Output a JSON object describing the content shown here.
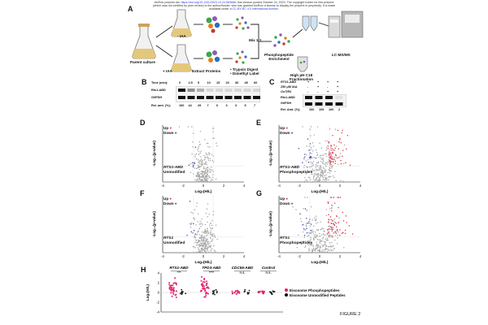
{
  "header": {
    "line1_a": "bioRxiv preprint doi: ",
    "doi": "https://doi.org/10.1101/2023.10.24.563668",
    "line1_b": "; this version posted October 24, 2023. The copyright holder for this preprint",
    "line2": "(which was not certified by peer review) is the author/funder, who has granted bioRxiv a license to display the preprint in perpetuity. It is made",
    "line3_a": "available under a ",
    "license": "CC-BY-NC 4.0 International license",
    "line3_b": "."
  },
  "panelA": {
    "label": "A",
    "parent_culture": "Parent culture",
    "minus_iaa": "- IAA",
    "plus_iaa": "+ IAA",
    "extract": "Extract Proteins",
    "digest1": "• Trypsin Digest",
    "digest2": "• Dimethyl Label",
    "mix": "Mix 1:1",
    "enrich1": "Phosphopeptide",
    "enrich2": "Enrichment",
    "frac1": "High pH C18",
    "frac2": "Fractionation",
    "lcms": "LC-MS/MS"
  },
  "panelB": {
    "label": "B",
    "time_label": "Time (min):",
    "times": [
      "0",
      "2.5",
      "5",
      "10",
      "15",
      "20",
      "30",
      "45",
      "60"
    ],
    "row1": "Rts1-ABD",
    "row2": "G6PDH",
    "rel_label": "Rel. amt. (%):",
    "rel_values": [
      "100",
      "44",
      "29",
      "7",
      "6",
      "3",
      "3",
      "5",
      "7"
    ]
  },
  "panelC": {
    "label": "C",
    "row_a": "RTS1-ABD",
    "row_b": "250 μM IAA",
    "row_c": "OsTIR1",
    "cols_a": [
      "+",
      "+",
      "+",
      "+"
    ],
    "cols_b": [
      "-",
      "+",
      "-",
      "+"
    ],
    "cols_c": [
      "-",
      "-",
      "+",
      "+"
    ],
    "band1": "Rts1-ABD",
    "band2": "G6PDH",
    "rel_label": "Rel. Amt. (%):",
    "rel_values": [
      "100",
      "105",
      "100",
      "2"
    ]
  },
  "volcano": {
    "up": "Up",
    "down": "Down",
    "xlabel": "Log₂(H/L)",
    "ylabel": "-Log₁₀(p-value)",
    "xticks": [
      "-4",
      "-2",
      "0",
      "2",
      "4"
    ],
    "D": {
      "label": "D",
      "t1": "RTS1-ABD",
      "t2": "Unmodified"
    },
    "E": {
      "label": "E",
      "t1": "RTS1-ABD",
      "t2": "Phosphopeptides"
    },
    "F": {
      "label": "F",
      "t1": "RTS1",
      "t2": "Unmodified"
    },
    "G": {
      "label": "G",
      "t1": "RTS1",
      "t2": "Phosphopeptides"
    }
  },
  "panelH": {
    "label": "H",
    "groups": [
      "RTS1-ABD",
      "TPD3-ABD",
      "CDC55-ABD",
      "Control"
    ],
    "sig": [
      "***",
      "****",
      "n.s.",
      "n.s."
    ],
    "ylabel": "Log₂(H/L)",
    "yticks": [
      "4",
      "2",
      "0",
      "-2",
      "-4"
    ],
    "legend1": "Eisosome Phosphopeptides",
    "legend2": "Eisosome Unmodified Peptides"
  },
  "figure_label": "FIGURE 2",
  "colors": {
    "up": "#e8334a",
    "down": "#3c4fb0",
    "pink": "#e0256e",
    "grey": "#9a9a9a",
    "link": "#2a3fd6"
  }
}
